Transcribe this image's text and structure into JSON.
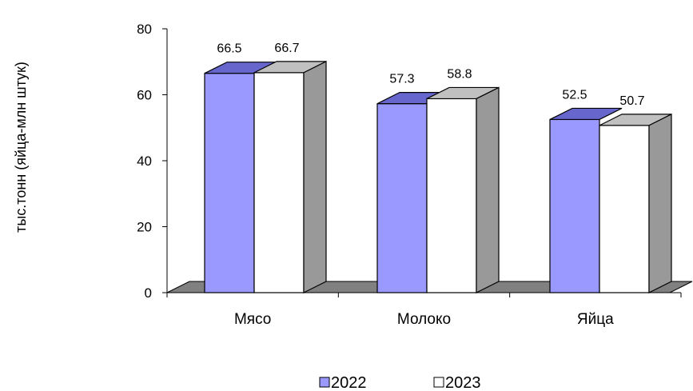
{
  "chart_data": {
    "type": "bar",
    "categories": [
      "Мясо",
      "Молоко",
      "Яйца"
    ],
    "series": [
      {
        "name": "2022",
        "values": [
          66.5,
          57.3,
          52.5
        ],
        "color": "#9999ff",
        "top_color": "#6666cc",
        "side_color": "#333366"
      },
      {
        "name": "2023",
        "values": [
          66.7,
          58.8,
          50.7
        ],
        "color": "#ffffff",
        "top_color": "#c0c0c0",
        "side_color": "#a0a0a0"
      }
    ],
    "title": "",
    "xlabel": "",
    "ylabel": "тыс.тонн (яйца-млн штук)",
    "ylim": [
      0,
      80
    ],
    "yticks": [
      "0",
      "20",
      "40",
      "60",
      "80"
    ],
    "data_labels": [
      [
        "66.5",
        "66.7"
      ],
      [
        "57.3",
        "58.8"
      ],
      [
        "52.5",
        "50.7"
      ]
    ],
    "legend_position": "bottom",
    "style": "3d-clustered-column"
  }
}
